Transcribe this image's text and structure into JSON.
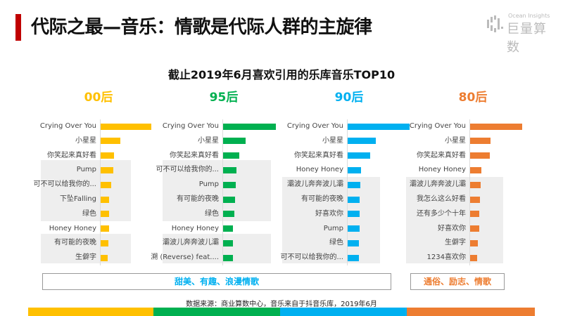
{
  "title": "代际之最—音乐：情歌是代际人群的主旋律",
  "logo": {
    "en": "Ocean Insights",
    "cn": "巨量算数"
  },
  "source": "数据来源：商业算数中心，音乐来自于抖音乐库，2019年6月",
  "tags": [
    {
      "label": "甜美、有趣、浪漫情歌",
      "color": "#00b0f0"
    },
    {
      "label": "通俗、励志、情歌",
      "color": "#ed7d31"
    }
  ],
  "chart_data": {
    "type": "bar",
    "title": "截止2019年6月喜欢引用的乐库音乐TOP10",
    "panels": [
      {
        "name": "00后",
        "color": "#ffc000",
        "categories": [
          "Crying Over You",
          "小星星",
          "你笑起来真好看",
          "Pump",
          "可不可以给我你的...",
          "下坠Falling",
          "绿色",
          "Honey Honey",
          "有可能的夜晚",
          "生僻字"
        ],
        "values": [
          100,
          39,
          26,
          25,
          21,
          17,
          16,
          16,
          15,
          14
        ]
      },
      {
        "name": "95后",
        "color": "#00b050",
        "categories": [
          "Crying Over You",
          "小星星",
          "你笑起来真好看",
          "可不可以给我你的...",
          "Pump",
          "有可能的夜晚",
          "绿色",
          "Honey Honey",
          "灞波儿奔奔波儿灞",
          "溯 (Reverse) feat...."
        ],
        "values": [
          100,
          43,
          31,
          25,
          24,
          23,
          21,
          19,
          19,
          19
        ]
      },
      {
        "name": "90后",
        "color": "#00b0f0",
        "categories": [
          "Crying Over You",
          "小星星",
          "你笑起来真好看",
          "Honey Honey",
          "灞波儿奔奔波儿灞",
          "有可能的夜晚",
          "好喜欢你",
          "Pump",
          "绿色",
          "可不可以给我你的..."
        ],
        "values": [
          100,
          46,
          36,
          22,
          20,
          19,
          19,
          19,
          18,
          18
        ]
      },
      {
        "name": "80后",
        "color": "#ed7d31",
        "categories": [
          "Crying Over You",
          "小星星",
          "你笑起来真好看",
          "Honey Honey",
          "灞波儿奔奔波儿灞",
          "我怎么这么好看",
          "还有多少个十年",
          "好喜欢你",
          "生僻字",
          "1234喜欢你"
        ],
        "values": [
          100,
          39,
          38,
          22,
          20,
          19,
          18,
          18,
          15,
          14
        ]
      }
    ]
  }
}
